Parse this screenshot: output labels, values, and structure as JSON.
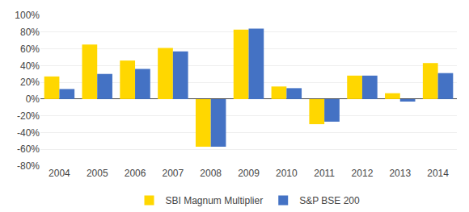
{
  "chart_data": {
    "type": "bar",
    "categories": [
      "2004",
      "2005",
      "2006",
      "2007",
      "2008",
      "2009",
      "2010",
      "2011",
      "2012",
      "2013",
      "2014"
    ],
    "series": [
      {
        "name": "SBI Magnum Multiplier",
        "color": "#FFD700",
        "values": [
          27,
          65,
          46,
          61,
          -57,
          83,
          15,
          -30,
          28,
          7,
          43
        ]
      },
      {
        "name": "S&P BSE 200",
        "color": "#4472C4",
        "values": [
          12,
          30,
          36,
          57,
          -57,
          84,
          13,
          -27,
          28,
          -3,
          31
        ]
      }
    ],
    "ylim": [
      -80,
      100
    ],
    "yticks": [
      {
        "value": -80,
        "label": "-80%"
      },
      {
        "value": -60,
        "label": "-60%"
      },
      {
        "value": -40,
        "label": "-40%"
      },
      {
        "value": -20,
        "label": "-20%"
      },
      {
        "value": 0,
        "label": "0%"
      },
      {
        "value": 20,
        "label": "20%"
      },
      {
        "value": 40,
        "label": "40%"
      },
      {
        "value": 60,
        "label": "60%"
      },
      {
        "value": 80,
        "label": "80%"
      },
      {
        "value": 100,
        "label": "100%"
      }
    ],
    "grid": true,
    "legend": "bottom"
  }
}
